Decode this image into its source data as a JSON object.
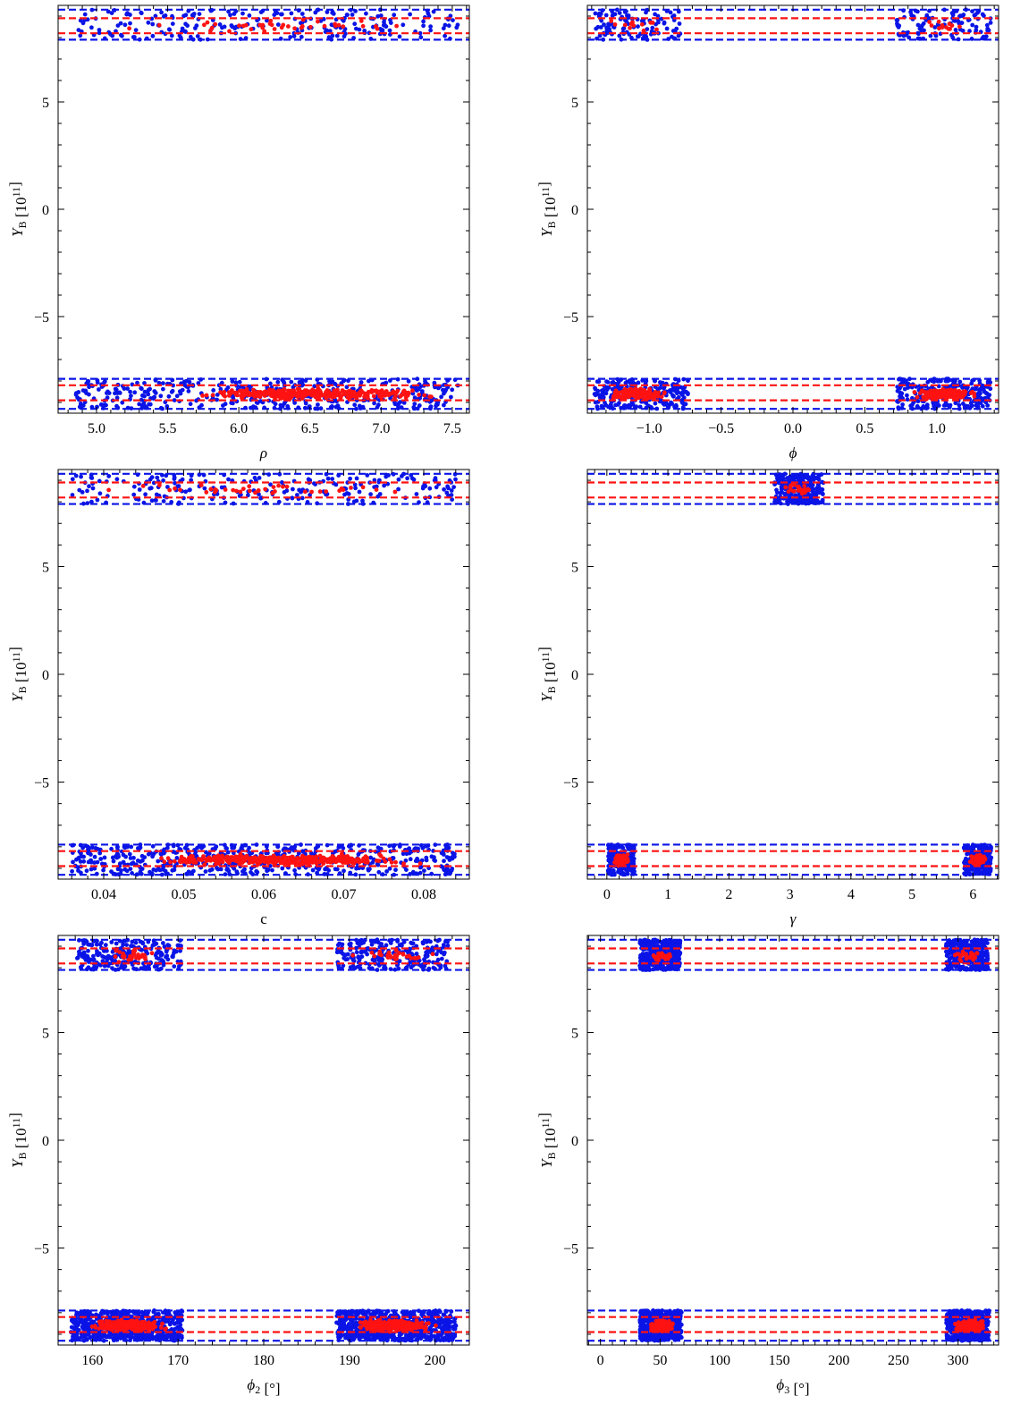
{
  "colors": {
    "blue": "#0a14e6",
    "red": "#ff1212",
    "axis": "#000000"
  },
  "bands": {
    "blue_lines": [
      7.9,
      9.3,
      -7.9,
      -9.3
    ],
    "red_lines": [
      8.2,
      8.9,
      -8.2,
      -8.9
    ]
  },
  "chart_data": [
    {
      "type": "scatter",
      "xlabel": "ρ",
      "ylabel": "Y_B [10^11]",
      "xlim": [
        4.73,
        7.62
      ],
      "ylim": [
        -9.5,
        9.5
      ],
      "xticks": [
        5.0,
        5.5,
        6.0,
        6.5,
        7.0,
        7.5
      ],
      "xtick_labels": [
        "5.0",
        "5.5",
        "6.0",
        "6.5",
        "7.0",
        "7.5"
      ],
      "yticks": [
        -5,
        0,
        5
      ],
      "ytick_labels": [
        "−5",
        "0",
        "5"
      ],
      "grid": false,
      "series": [
        {
          "color": "blue",
          "clusters": [
            {
              "x": [
                4.85,
                7.55
              ],
              "y": [
                7.9,
                9.3
              ],
              "n": 230
            },
            {
              "x": [
                4.85,
                7.55
              ],
              "y": [
                -9.3,
                -7.9
              ],
              "n": 420
            }
          ]
        },
        {
          "color": "red",
          "clusters": [
            {
              "x": [
                4.85,
                7.55
              ],
              "y": [
                8.2,
                8.9
              ],
              "n": 40
            },
            {
              "x": [
                5.5,
                7.5
              ],
              "y": [
                -8.9,
                -8.3
              ],
              "n": 360
            }
          ]
        }
      ]
    },
    {
      "type": "scatter",
      "xlabel": "ϕ",
      "ylabel": "Y_B [10^11]",
      "xlim": [
        -1.43,
        1.43
      ],
      "ylim": [
        -9.5,
        9.5
      ],
      "xticks": [
        -1.0,
        -0.5,
        0.0,
        0.5,
        1.0
      ],
      "xtick_labels": [
        "−1.0",
        "−0.5",
        "0.0",
        "0.5",
        "1.0"
      ],
      "yticks": [
        -5,
        0,
        5
      ],
      "ytick_labels": [
        "−5",
        "0",
        "5"
      ],
      "grid": false,
      "series": [
        {
          "color": "blue",
          "clusters": [
            {
              "x": [
                -1.38,
                -0.78
              ],
              "y": [
                7.9,
                9.3
              ],
              "n": 110
            },
            {
              "x": [
                0.72,
                1.38
              ],
              "y": [
                7.9,
                9.3
              ],
              "n": 110
            },
            {
              "x": [
                -1.38,
                -0.73
              ],
              "y": [
                -9.3,
                -7.9
              ],
              "n": 240
            },
            {
              "x": [
                0.72,
                1.38
              ],
              "y": [
                -9.3,
                -7.9
              ],
              "n": 240
            }
          ]
        },
        {
          "color": "red",
          "clusters": [
            {
              "x": [
                -1.3,
                -0.85
              ],
              "y": [
                8.2,
                8.9
              ],
              "n": 12
            },
            {
              "x": [
                0.8,
                1.3
              ],
              "y": [
                8.2,
                8.9
              ],
              "n": 12
            },
            {
              "x": [
                -1.3,
                -0.85
              ],
              "y": [
                -8.9,
                -8.3
              ],
              "n": 180
            },
            {
              "x": [
                0.8,
                1.3
              ],
              "y": [
                -8.9,
                -8.3
              ],
              "n": 180
            }
          ]
        }
      ]
    },
    {
      "type": "scatter",
      "xlabel": "c",
      "ylabel": "Y_B [10^11]",
      "xlim": [
        0.0343,
        0.0857
      ],
      "ylim": [
        -9.5,
        9.5
      ],
      "xticks": [
        0.04,
        0.05,
        0.06,
        0.07,
        0.08
      ],
      "xtick_labels": [
        "0.04",
        "0.05",
        "0.06",
        "0.07",
        "0.08"
      ],
      "yticks": [
        -5,
        0,
        5
      ],
      "ytick_labels": [
        "−5",
        "0",
        "5"
      ],
      "grid": false,
      "series": [
        {
          "color": "blue",
          "clusters": [
            {
              "x": [
                0.036,
                0.084
              ],
              "y": [
                7.9,
                9.3
              ],
              "n": 230
            },
            {
              "x": [
                0.036,
                0.084
              ],
              "y": [
                -9.3,
                -7.9
              ],
              "n": 520
            }
          ]
        },
        {
          "color": "red",
          "clusters": [
            {
              "x": [
                0.036,
                0.084
              ],
              "y": [
                8.2,
                8.9
              ],
              "n": 40
            },
            {
              "x": [
                0.042,
                0.082
              ],
              "y": [
                -8.9,
                -8.3
              ],
              "n": 380
            }
          ]
        }
      ]
    },
    {
      "type": "scatter",
      "xlabel": "γ",
      "ylabel": "Y_B [10^11]",
      "xlim": [
        -0.32,
        6.42
      ],
      "ylim": [
        -9.5,
        9.5
      ],
      "xticks": [
        0,
        1,
        2,
        3,
        4,
        5,
        6
      ],
      "xtick_labels": [
        "0",
        "1",
        "2",
        "3",
        "4",
        "5",
        "6"
      ],
      "yticks": [
        -5,
        0,
        5
      ],
      "ytick_labels": [
        "−5",
        "0",
        "5"
      ],
      "grid": false,
      "series": [
        {
          "color": "blue",
          "clusters": [
            {
              "x": [
                2.75,
                3.55
              ],
              "y": [
                7.9,
                9.3
              ],
              "n": 260
            },
            {
              "x": [
                0.02,
                0.45
              ],
              "y": [
                -9.3,
                -7.9
              ],
              "n": 200
            },
            {
              "x": [
                5.85,
                6.3
              ],
              "y": [
                -9.3,
                -7.9
              ],
              "n": 200
            }
          ]
        },
        {
          "color": "red",
          "clusters": [
            {
              "x": [
                2.85,
                3.45
              ],
              "y": [
                8.2,
                8.9
              ],
              "n": 30
            },
            {
              "x": [
                0.1,
                0.38
              ],
              "y": [
                -8.9,
                -8.3
              ],
              "n": 110
            },
            {
              "x": [
                5.92,
                6.22
              ],
              "y": [
                -8.9,
                -8.3
              ],
              "n": 110
            }
          ]
        }
      ]
    },
    {
      "type": "scatter",
      "xlabel": "ϕ_2 [°]",
      "ylabel": "Y_B [10^11]",
      "xlim": [
        156.0,
        204.0
      ],
      "ylim": [
        -9.5,
        9.5
      ],
      "xticks": [
        160,
        170,
        180,
        190,
        200
      ],
      "xtick_labels": [
        "160",
        "170",
        "180",
        "190",
        "200"
      ],
      "yticks": [
        -5,
        0,
        5
      ],
      "ytick_labels": [
        "−5",
        "0",
        "5"
      ],
      "grid": false,
      "series": [
        {
          "color": "blue",
          "clusters": [
            {
              "x": [
                158.0,
                170.5
              ],
              "y": [
                7.9,
                9.3
              ],
              "n": 230
            },
            {
              "x": [
                188.5,
                201.5
              ],
              "y": [
                7.9,
                9.3
              ],
              "n": 230
            },
            {
              "x": [
                157.5,
                170.5
              ],
              "y": [
                -9.3,
                -7.9
              ],
              "n": 620
            },
            {
              "x": [
                188.5,
                202.5
              ],
              "y": [
                -9.3,
                -7.9
              ],
              "n": 620
            }
          ]
        },
        {
          "color": "red",
          "clusters": [
            {
              "x": [
                160.0,
                169.0
              ],
              "y": [
                8.2,
                8.9
              ],
              "n": 30
            },
            {
              "x": [
                190.0,
                200.0
              ],
              "y": [
                8.2,
                8.9
              ],
              "n": 30
            },
            {
              "x": [
                159.5,
                169.0
              ],
              "y": [
                -8.9,
                -8.3
              ],
              "n": 380
            },
            {
              "x": [
                190.0,
                200.5
              ],
              "y": [
                -8.9,
                -8.3
              ],
              "n": 380
            }
          ]
        }
      ]
    },
    {
      "type": "scatter",
      "xlabel": "ϕ_3 [°]",
      "ylabel": "Y_B [10^11]",
      "xlim": [
        -11.0,
        334.0
      ],
      "ylim": [
        -9.5,
        9.5
      ],
      "xticks": [
        0,
        50,
        100,
        150,
        200,
        250,
        300
      ],
      "xtick_labels": [
        "0",
        "50",
        "100",
        "150",
        "200",
        "250",
        "300"
      ],
      "yticks": [
        -5,
        0,
        5
      ],
      "ytick_labels": [
        "−5",
        "0",
        "5"
      ],
      "grid": false,
      "series": [
        {
          "color": "blue",
          "clusters": [
            {
              "x": [
                33.0,
                67.0
              ],
              "y": [
                7.9,
                9.3
              ],
              "n": 330
            },
            {
              "x": [
                290.0,
                325.0
              ],
              "y": [
                7.9,
                9.3
              ],
              "n": 330
            },
            {
              "x": [
                33.0,
                68.0
              ],
              "y": [
                -9.3,
                -7.9
              ],
              "n": 450
            },
            {
              "x": [
                290.0,
                326.0
              ],
              "y": [
                -9.3,
                -7.9
              ],
              "n": 450
            }
          ]
        },
        {
          "color": "red",
          "clusters": [
            {
              "x": [
                38.0,
                63.0
              ],
              "y": [
                8.2,
                8.9
              ],
              "n": 25
            },
            {
              "x": [
                293.0,
                321.0
              ],
              "y": [
                8.2,
                8.9
              ],
              "n": 25
            },
            {
              "x": [
                40.0,
                63.0
              ],
              "y": [
                -8.9,
                -8.3
              ],
              "n": 260
            },
            {
              "x": [
                295.0,
                323.0
              ],
              "y": [
                -8.9,
                -8.3
              ],
              "n": 260
            }
          ]
        }
      ]
    }
  ]
}
